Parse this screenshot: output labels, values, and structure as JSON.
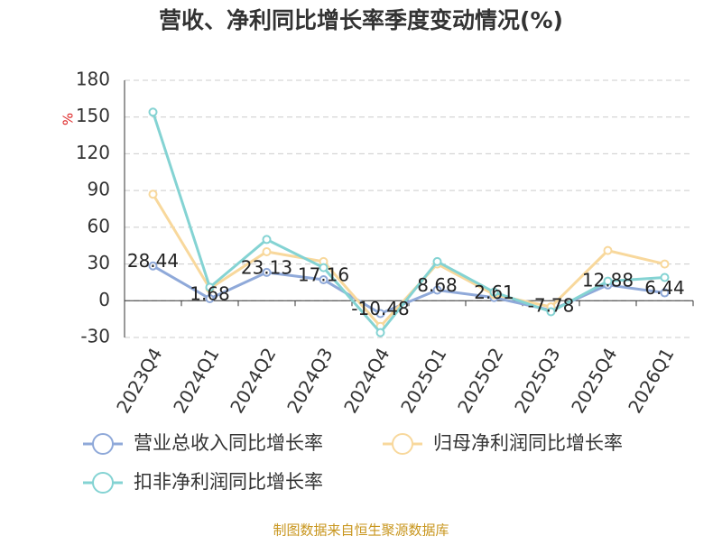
{
  "chart_data": {
    "type": "line",
    "title": "营收、净利同比增长率季度变动情况(%)",
    "y_label": "%",
    "source": "制图数据来自恒生聚源数据库",
    "categories": [
      "2023Q4",
      "2024Q1",
      "2024Q2",
      "2024Q3",
      "2024Q4",
      "2025Q1",
      "2025Q2",
      "2025Q3",
      "2025Q4",
      "2026Q1"
    ],
    "series": [
      {
        "name": "营业总收入同比增长率",
        "color": "#8fa9d9",
        "values": [
          28.44,
          1.68,
          23.13,
          17.16,
          -10.48,
          8.68,
          2.61,
          -7.78,
          12.88,
          6.44
        ],
        "show_labels": true
      },
      {
        "name": "归母净利润同比增长率",
        "color": "#f8d89c",
        "values": [
          87,
          10,
          40,
          32,
          -21,
          30,
          5,
          -5,
          41,
          30
        ],
        "show_labels": false
      },
      {
        "name": "扣非净利润同比增长率",
        "color": "#84d3d3",
        "values": [
          154,
          11,
          50,
          27,
          -26,
          32,
          7,
          -9,
          16,
          19
        ],
        "show_labels": false
      }
    ],
    "ylim": [
      -30,
      180
    ],
    "yticks": [
      -30,
      0,
      30,
      60,
      90,
      120,
      150,
      180
    ],
    "grid": true
  }
}
